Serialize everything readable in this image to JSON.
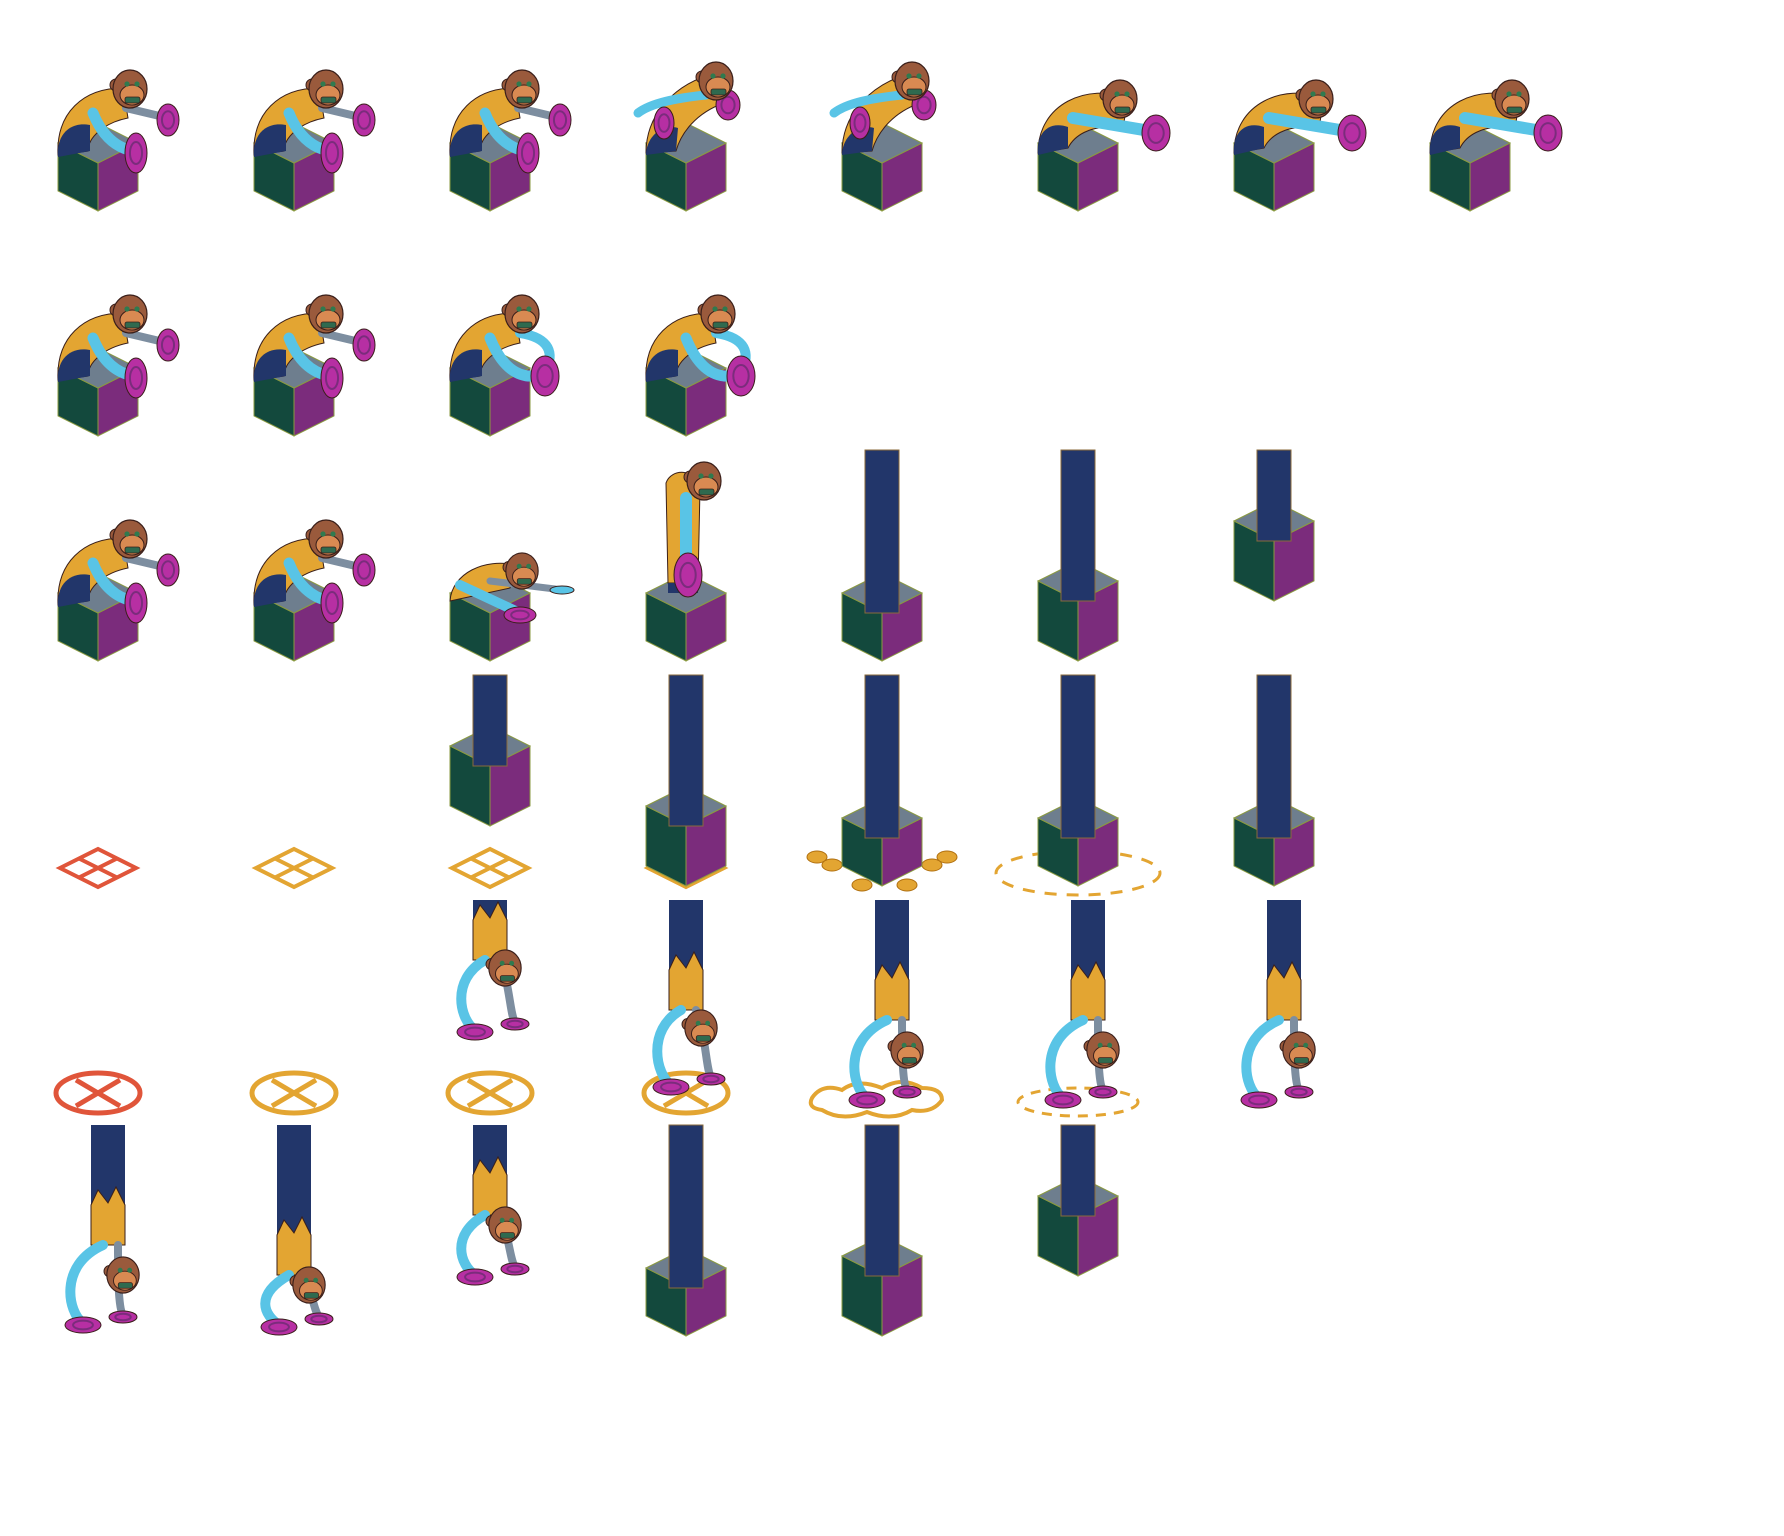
{
  "sheet": {
    "background": "#ffffff",
    "palette": {
      "box_left": "#13493d",
      "box_right": "#7b2c7c",
      "box_top": "#6e7e8e",
      "pole": "#22366a",
      "body": "#e3a532",
      "arm": "#59c4e6",
      "sleeve": "#7d8ea0",
      "cymbal": "#b72fa3",
      "cymbal_inner": "#7b2c7c",
      "face": "#9a5a3c",
      "muzzle": "#d98a52",
      "mouth": "#2f6a4f",
      "eye": "#2f7a4f",
      "warn_red": "#e0553a",
      "warn_orange": "#e3a532",
      "outline": "#3a1f1a"
    },
    "rows": [
      {
        "frames": [
          {
            "type": "box-monkey",
            "pose": "cymbals-open"
          },
          {
            "type": "box-monkey",
            "pose": "cymbals-open"
          },
          {
            "type": "box-monkey",
            "pose": "cymbals-open"
          },
          {
            "type": "box-monkey",
            "pose": "arms-raised"
          },
          {
            "type": "box-monkey",
            "pose": "arms-raised"
          },
          {
            "type": "box-monkey",
            "pose": "lean-clap"
          },
          {
            "type": "box-monkey",
            "pose": "lean-clap"
          },
          {
            "type": "box-monkey",
            "pose": "lean-clap"
          }
        ]
      },
      {
        "frames": [
          {
            "type": "box-monkey",
            "pose": "cymbals-open"
          },
          {
            "type": "box-monkey",
            "pose": "cymbals-open"
          },
          {
            "type": "box-monkey",
            "pose": "cymbals-together"
          },
          {
            "type": "box-monkey",
            "pose": "cymbals-together"
          }
        ]
      },
      {
        "frames": [
          {
            "type": "box-monkey",
            "pose": "cymbals-open"
          },
          {
            "type": "box-monkey",
            "pose": "cymbals-open"
          },
          {
            "type": "box-monkey",
            "pose": "crouch"
          },
          {
            "type": "box-monkey",
            "pose": "stretch-up"
          },
          {
            "type": "box-pole",
            "pose": "low"
          },
          {
            "type": "box-pole",
            "pose": "mid"
          },
          {
            "type": "box-pole",
            "pose": "high"
          }
        ]
      },
      {
        "frames": [
          {
            "type": "marker-square",
            "color": "warn_red"
          },
          {
            "type": "marker-square",
            "color": "warn_orange"
          },
          {
            "type": "box-pole",
            "pose": "drop",
            "marker": "warn_orange"
          },
          {
            "type": "box-pole",
            "pose": "land",
            "marker": "warn_orange"
          },
          {
            "type": "box-pole",
            "pose": "impact-splash"
          },
          {
            "type": "box-pole",
            "pose": "impact-ring"
          },
          {
            "type": "box-pole",
            "pose": "rest"
          }
        ]
      },
      {
        "frames": [
          {
            "type": "marker-ring",
            "color": "warn_red"
          },
          {
            "type": "marker-ring",
            "color": "warn_orange"
          },
          {
            "type": "hang-monkey",
            "pose": "drop",
            "marker": "warn_orange"
          },
          {
            "type": "hang-monkey",
            "pose": "reach",
            "marker": "warn_orange"
          },
          {
            "type": "hang-monkey",
            "pose": "impact-splash"
          },
          {
            "type": "hang-monkey",
            "pose": "impact-ring"
          },
          {
            "type": "hang-monkey",
            "pose": "rest"
          }
        ]
      },
      {
        "frames": [
          {
            "type": "hang-monkey",
            "pose": "rest"
          },
          {
            "type": "hang-monkey",
            "pose": "rising"
          },
          {
            "type": "hang-monkey",
            "pose": "rising-high"
          },
          {
            "type": "box-pole",
            "pose": "low"
          },
          {
            "type": "box-pole",
            "pose": "mid"
          },
          {
            "type": "box-pole",
            "pose": "high"
          }
        ]
      }
    ]
  }
}
